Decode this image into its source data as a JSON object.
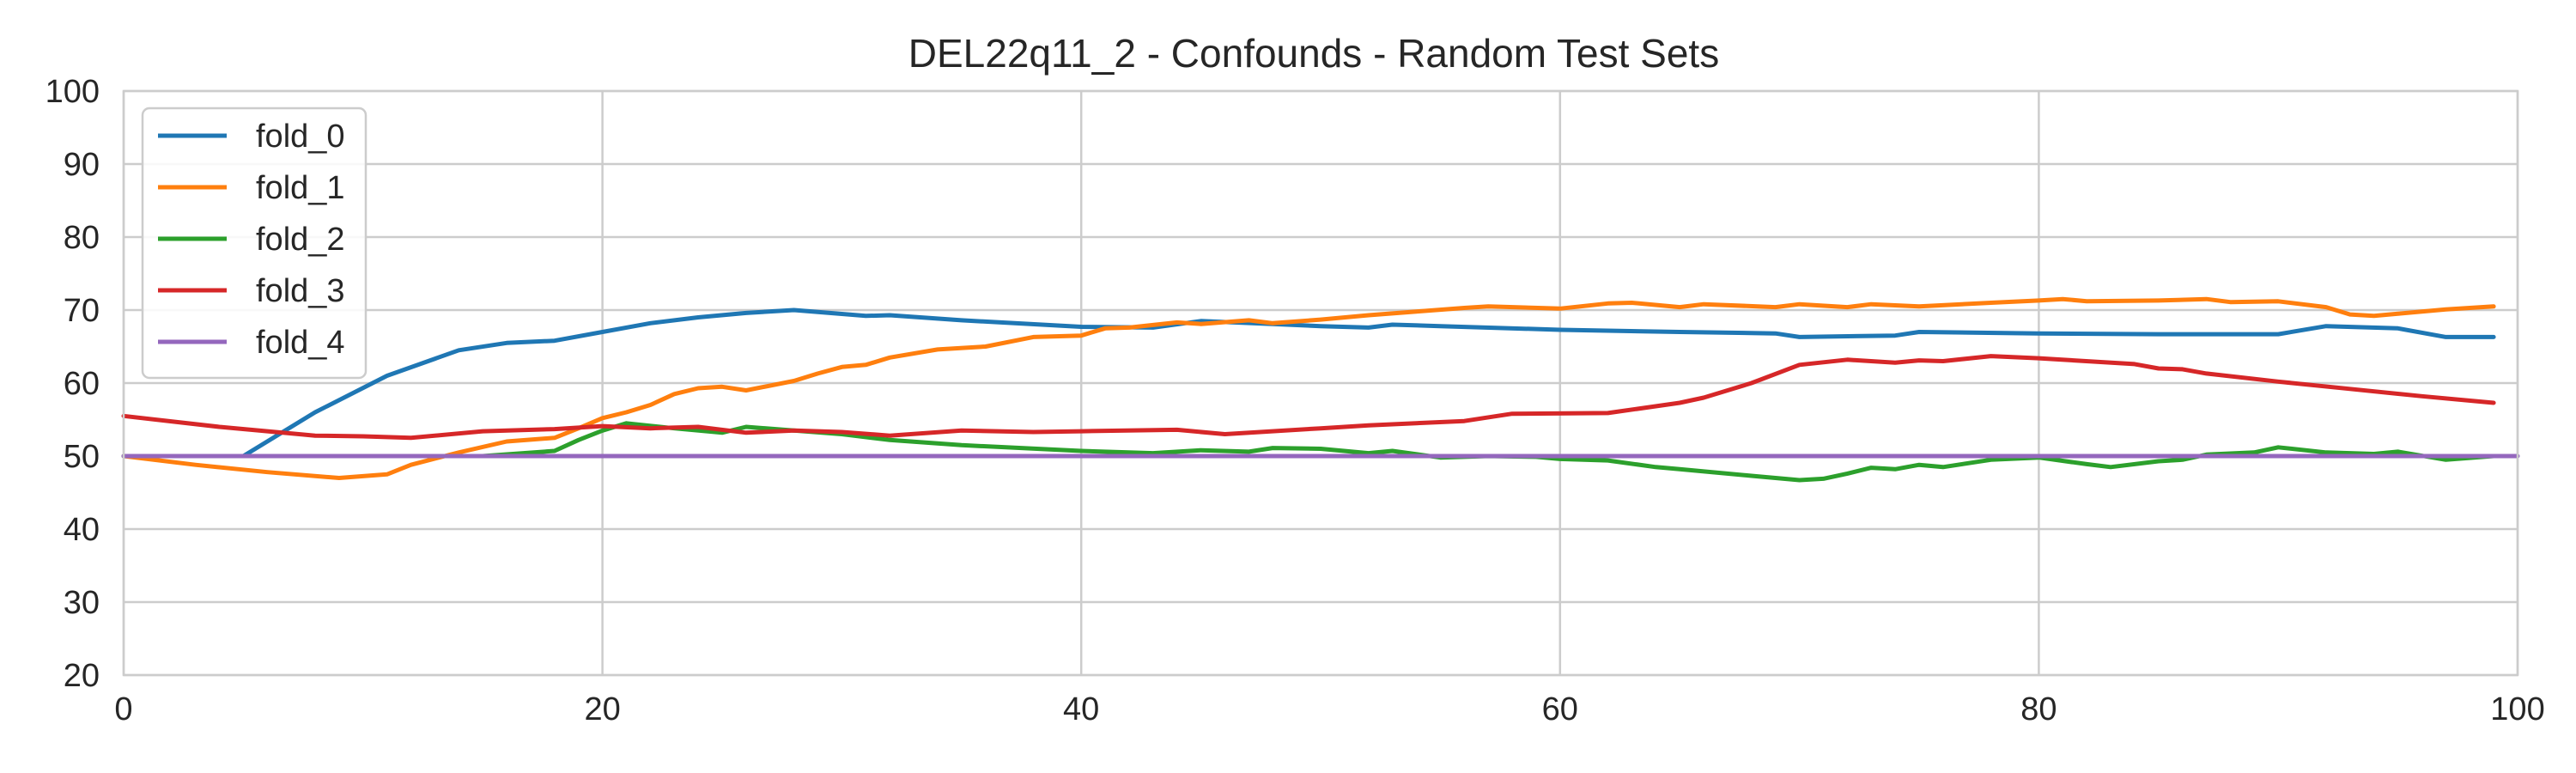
{
  "chart_data": {
    "type": "line",
    "title": "DEL22q11_2 - Confounds - Random Test Sets",
    "xlabel": "",
    "ylabel": "",
    "xlim": [
      0,
      100
    ],
    "ylim": [
      20,
      100
    ],
    "xticks": [
      0,
      20,
      40,
      60,
      80,
      100
    ],
    "yticks": [
      20,
      30,
      40,
      50,
      60,
      70,
      80,
      90,
      100
    ],
    "grid": true,
    "legend_position": "top-left",
    "reference_line": {
      "y": 50,
      "color": "#000000",
      "style": "dashed"
    },
    "series": [
      {
        "name": "fold_0",
        "color": "#1f77b4",
        "x": [
          0,
          5,
          8,
          11,
          14,
          16,
          18,
          20,
          22,
          24,
          26,
          28,
          31,
          32,
          35,
          40,
          43,
          45,
          48,
          50,
          52,
          53,
          55,
          60,
          65,
          69,
          70,
          74,
          75,
          80,
          85,
          90,
          92,
          95,
          97,
          99
        ],
        "y": [
          50,
          50,
          56,
          61,
          64.5,
          65.5,
          65.8,
          67,
          68.2,
          69,
          69.6,
          70,
          69.2,
          69.3,
          68.6,
          67.7,
          67.6,
          68.5,
          68.1,
          67.8,
          67.6,
          68,
          67.8,
          67.3,
          67,
          66.8,
          66.3,
          66.5,
          67,
          66.8,
          66.7,
          66.7,
          67.8,
          67.5,
          66.3,
          66.3
        ]
      },
      {
        "name": "fold_1",
        "color": "#ff7f0e",
        "x": [
          0,
          3,
          6,
          9,
          11,
          12,
          14,
          16,
          18,
          19,
          20,
          21,
          22,
          23,
          24,
          25,
          26,
          28,
          29,
          30,
          31,
          32,
          34,
          36,
          38,
          40,
          41,
          42,
          44,
          45,
          47,
          48,
          50,
          52,
          54,
          56,
          57,
          60,
          62,
          63,
          65,
          66,
          69,
          70,
          72,
          73,
          75,
          78,
          80,
          81,
          82,
          85,
          87,
          88,
          90,
          92,
          93,
          94,
          95,
          97,
          99
        ],
        "y": [
          50,
          48.8,
          47.8,
          47,
          47.5,
          48.8,
          50.5,
          52,
          52.5,
          53.8,
          55.2,
          56,
          57,
          58.5,
          59.3,
          59.5,
          59,
          60.3,
          61.3,
          62.2,
          62.5,
          63.5,
          64.6,
          65,
          66.3,
          66.5,
          67.5,
          67.6,
          68.3,
          68.1,
          68.6,
          68.2,
          68.7,
          69.3,
          69.8,
          70.3,
          70.5,
          70.2,
          70.9,
          71,
          70.4,
          70.8,
          70.4,
          70.8,
          70.4,
          70.8,
          70.5,
          71,
          71.3,
          71.5,
          71.2,
          71.3,
          71.5,
          71.1,
          71.2,
          70.4,
          69.4,
          69.2,
          69.5,
          70.1,
          70.5
        ]
      },
      {
        "name": "fold_2",
        "color": "#2ca02c",
        "x": [
          0,
          5,
          10,
          15,
          18,
          19,
          20,
          21,
          23,
          25,
          26,
          28,
          30,
          32,
          35,
          40,
          43,
          45,
          47,
          48,
          50,
          52,
          53,
          55,
          57,
          59,
          60,
          62,
          64,
          65,
          68,
          70,
          71,
          72,
          73,
          74,
          75,
          76,
          78,
          80,
          82,
          83,
          85,
          86,
          87,
          89,
          90,
          92,
          94,
          95,
          97,
          99
        ],
        "y": [
          50,
          50,
          50,
          50,
          50.7,
          52.2,
          53.5,
          54.5,
          53.8,
          53.2,
          54,
          53.5,
          53,
          52.2,
          51.5,
          50.7,
          50.4,
          50.8,
          50.6,
          51.1,
          51,
          50.4,
          50.7,
          49.8,
          50,
          49.9,
          49.6,
          49.4,
          48.5,
          48.2,
          47.3,
          46.7,
          46.9,
          47.6,
          48.4,
          48.2,
          48.8,
          48.5,
          49.5,
          49.8,
          48.9,
          48.5,
          49.3,
          49.5,
          50.2,
          50.5,
          51.2,
          50.5,
          50.3,
          50.6,
          49.5,
          50
        ]
      },
      {
        "name": "fold_3",
        "color": "#d62728",
        "x": [
          0,
          4,
          8,
          10,
          12,
          15,
          18,
          20,
          22,
          24,
          26,
          28,
          30,
          32,
          35,
          38,
          40,
          44,
          46,
          50,
          52,
          56,
          58,
          62,
          65,
          66,
          67,
          68,
          70,
          72,
          74,
          75,
          76,
          78,
          80,
          84,
          85,
          86,
          87,
          90,
          93,
          96,
          99
        ],
        "y": [
          55.5,
          54,
          52.8,
          52.7,
          52.5,
          53.4,
          53.7,
          54.1,
          53.8,
          54,
          53.2,
          53.5,
          53.3,
          52.8,
          53.5,
          53.3,
          53.4,
          53.6,
          53,
          53.8,
          54.2,
          54.8,
          55.8,
          55.9,
          57.3,
          58,
          59,
          60,
          62.5,
          63.2,
          62.8,
          63.1,
          63,
          63.7,
          63.4,
          62.6,
          62,
          61.9,
          61.3,
          60.2,
          59.2,
          58.2,
          57.3
        ]
      },
      {
        "name": "fold_4",
        "color": "#9467bd",
        "x": [
          0,
          100
        ],
        "y": [
          50,
          50
        ]
      }
    ]
  }
}
